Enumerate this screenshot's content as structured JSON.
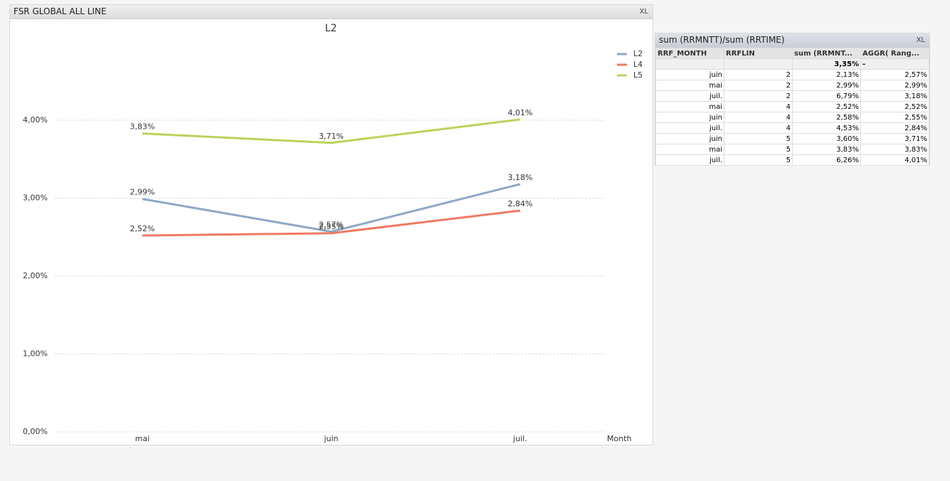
{
  "left_window": {
    "title": "FSR GLOBAL ALL LINE",
    "toolbar_text": "XL"
  },
  "chart_data": {
    "type": "line",
    "title": "L2",
    "x_label": "Month",
    "categories": [
      "mai",
      "juin",
      "juil."
    ],
    "series": [
      {
        "name": "L2",
        "color": "#8fa8c8",
        "values": [
          2.99,
          2.57,
          3.18
        ],
        "value_labels": [
          "2,99%",
          "2,57%",
          "3,18%"
        ]
      },
      {
        "name": "L4",
        "color": "#f07a62",
        "values": [
          2.52,
          2.55,
          2.84
        ],
        "value_labels": [
          "2,52%",
          "2,55%",
          "2,84%"
        ]
      },
      {
        "name": "L5",
        "color": "#b9d45a",
        "values": [
          3.83,
          3.71,
          4.01
        ],
        "value_labels": [
          "3,83%",
          "3,71%",
          "4,01%"
        ]
      }
    ],
    "ylim": [
      0,
      5
    ],
    "yticks": [
      {
        "value": 0,
        "label": "0,00%"
      },
      {
        "value": 1,
        "label": "1,00%"
      },
      {
        "value": 2,
        "label": "2,00%"
      },
      {
        "value": 3,
        "label": "3,00%"
      },
      {
        "value": 4,
        "label": "4,00%"
      }
    ],
    "grid": true,
    "legend": "top-right"
  },
  "right_window": {
    "title": "sum (RRMNTT)/sum (RRTIME)",
    "toolbar_text": "XL",
    "table": {
      "headers": [
        "RRF_MONTH",
        "RRFLIN",
        "sum (RRMNT...",
        "AGGR( Rang..."
      ],
      "total": {
        "sum": "3,35%",
        "aggr": "-"
      },
      "rows": [
        [
          "juin",
          2,
          "2,13%",
          "2,57%"
        ],
        [
          "mai",
          2,
          "2,99%",
          "2,99%"
        ],
        [
          "juil.",
          2,
          "6,79%",
          "3,18%"
        ],
        [
          "mai",
          4,
          "2,52%",
          "2,52%"
        ],
        [
          "juin",
          4,
          "2,58%",
          "2,55%"
        ],
        [
          "juil.",
          4,
          "4,53%",
          "2,84%"
        ],
        [
          "juin",
          5,
          "3,60%",
          "3,71%"
        ],
        [
          "mai",
          5,
          "3,83%",
          "3,83%"
        ],
        [
          "juil.",
          5,
          "6,26%",
          "4,01%"
        ]
      ]
    }
  }
}
